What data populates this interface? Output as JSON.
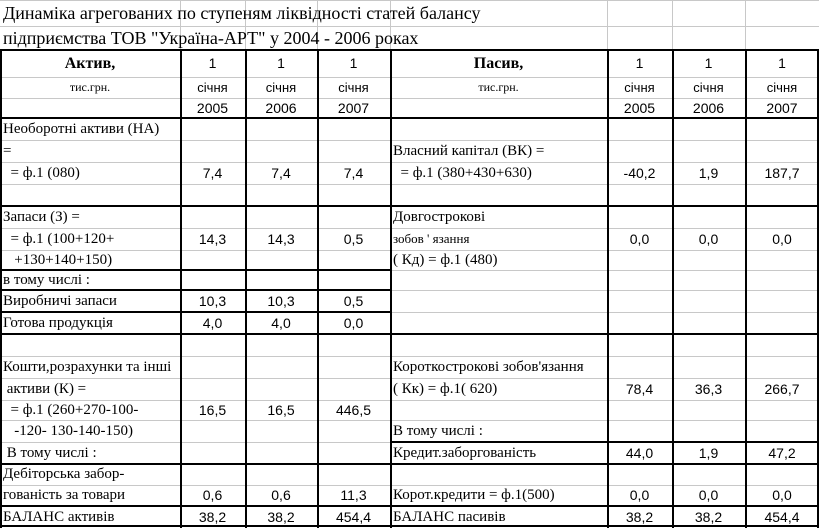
{
  "title": [
    "Динаміка агрегованих по ступеням ліквідності статей балансу",
    "підприємства ТОВ \"Україна-АРТ\" у 2004 - 2006 роках"
  ],
  "dates": [
    {
      "day": "1",
      "month": "січня",
      "year": "2005"
    },
    {
      "day": "1",
      "month": "січня",
      "year": "2006"
    },
    {
      "day": "1",
      "month": "січня",
      "year": "2007"
    }
  ],
  "assets": {
    "header": "Актив,",
    "unit": "тис.грн.",
    "na": {
      "lines": [
        "Необоротні активи (НА)",
        "=",
        "  = ф.1 (080)"
      ],
      "values": [
        "7,4",
        "7,4",
        "7,4"
      ]
    },
    "zapasy": {
      "lines": [
        "Запаси (З) =",
        "  = ф.1 (100+120+",
        "   +130+140+150)"
      ],
      "values": [
        "14,3",
        "14,3",
        "0,5"
      ]
    },
    "incl": "в тому числі :",
    "vyrob": {
      "label": "Виробничі запаси",
      "values": [
        "10,3",
        "10,3",
        "0,5"
      ]
    },
    "gotova": {
      "label": "Готова продукція",
      "values": [
        "4,0",
        "4,0",
        "0,0"
      ]
    },
    "koshty": {
      "lines": [
        "Кошти,розрахунки та інші",
        " активи (К) =",
        "  = ф.1 (260+270-100-",
        "   -120- 130-140-150)"
      ],
      "values": [
        "16,5",
        "16,5",
        "446,5"
      ]
    },
    "incl2": " В тому числі :",
    "debit": {
      "lines": [
        "Дебіторська забор-",
        "гованість за товари"
      ],
      "values": [
        "0,6",
        "0,6",
        "11,3"
      ]
    },
    "balance": {
      "label": "БАЛАНС активів",
      "values": [
        "38,2",
        "38,2",
        "454,4"
      ]
    }
  },
  "liabilities": {
    "header": "Пасив,",
    "unit": "тис.грн.",
    "vk": {
      "lines": [
        "Власний капітал (ВК) =",
        "  = ф.1 (380+430+630)"
      ],
      "values": [
        "-40,2",
        "1,9",
        "187,7"
      ]
    },
    "kd": {
      "lines": [
        "Довгострокові",
        "зобов ' язання",
        "( Кд) = ф.1 (480)"
      ],
      "values": [
        "0,0",
        "0,0",
        "0,0"
      ]
    },
    "kk": {
      "lines": [
        "Короткострокові зобов'язання",
        "( Кк) = ф.1( 620)"
      ],
      "values": [
        "78,4",
        "36,3",
        "266,7"
      ]
    },
    "incl": "В тому числі :",
    "kredit": {
      "label": "Кредит.заборгованість",
      "values": [
        "44,0",
        "1,9",
        "47,2"
      ]
    },
    "korot": {
      "label": "Корот.кредити = ф.1(500)",
      "values": [
        "0,0",
        "0,0",
        "0,0"
      ]
    },
    "balance": {
      "label": "БАЛАНС пасивів",
      "values": [
        "38,2",
        "38,2",
        "454,4"
      ]
    }
  }
}
